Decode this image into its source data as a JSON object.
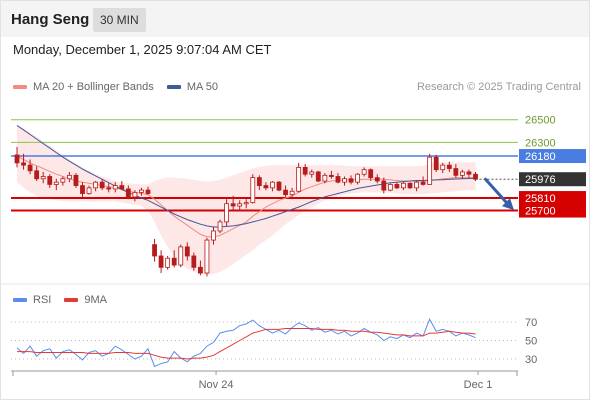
{
  "header": {
    "instrument": "Hang Seng",
    "timeframe": "30 MIN",
    "datetime": "Monday, December 1, 2025 9:07:04 AM CET",
    "copyright": "Research © 2025 Trading Central"
  },
  "colors": {
    "ma20": "#f28b82",
    "bollinger_fill": "#fde3e3",
    "ma50": "#3d5a99",
    "candle": "#b71c1c",
    "resistance_line": "#8bc34a",
    "pivot_line": "#4a7de0",
    "support_line": "#d50000",
    "current_badge": "#333333",
    "rsi": "#5b8def",
    "rsi_ma": "#e53935",
    "arrow": "#3560a8"
  },
  "chart_data": [
    {
      "type": "candlestick",
      "title": "Hang Seng",
      "timeframe": "30 MIN",
      "legend": [
        "MA 20 + Bollinger Bands",
        "MA 50"
      ],
      "legend_placement": "top-left",
      "grid": false,
      "ylim": [
        25150,
        26700
      ],
      "x_tick_labels": [
        {
          "label": "Nov 24",
          "index": 31
        },
        {
          "label": "Dec 1",
          "index": 71
        }
      ],
      "ohlc": [
        [
          26190,
          26260,
          26080,
          26120
        ],
        [
          26120,
          26200,
          26060,
          26100
        ],
        [
          26100,
          26150,
          26020,
          26050
        ],
        [
          26050,
          26090,
          25960,
          25980
        ],
        [
          25980,
          26040,
          25940,
          26000
        ],
        [
          26000,
          26020,
          25900,
          25930
        ],
        [
          25930,
          25980,
          25880,
          25950
        ],
        [
          25950,
          26000,
          25920,
          25980
        ],
        [
          25980,
          26040,
          25950,
          26010
        ],
        [
          26010,
          26030,
          25900,
          25920
        ],
        [
          25920,
          25950,
          25820,
          25850
        ],
        [
          25850,
          25920,
          25840,
          25900
        ],
        [
          25900,
          25960,
          25870,
          25950
        ],
        [
          25950,
          25980,
          25880,
          25900
        ],
        [
          25900,
          25940,
          25860,
          25890
        ],
        [
          25890,
          25950,
          25860,
          25920
        ],
        [
          25920,
          25960,
          25880,
          25890
        ],
        [
          25890,
          25920,
          25800,
          25820
        ],
        [
          25820,
          25880,
          25780,
          25860
        ],
        [
          25860,
          25900,
          25830,
          25880
        ],
        [
          25880,
          25910,
          25840,
          25850
        ],
        [
          25400,
          25450,
          25250,
          25300
        ],
        [
          25300,
          25350,
          25150,
          25200
        ],
        [
          25200,
          25300,
          25180,
          25280
        ],
        [
          25280,
          25350,
          25200,
          25220
        ],
        [
          25220,
          25400,
          25200,
          25380
        ],
        [
          25380,
          25420,
          25260,
          25300
        ],
        [
          25300,
          25330,
          25170,
          25200
        ],
        [
          25200,
          25260,
          25130,
          25150
        ],
        [
          25150,
          25460,
          25120,
          25440
        ],
        [
          25440,
          25560,
          25400,
          25520
        ],
        [
          25520,
          25620,
          25500,
          25600
        ],
        [
          25600,
          25800,
          25560,
          25760
        ],
        [
          25760,
          25830,
          25700,
          25740
        ],
        [
          25740,
          25790,
          25700,
          25760
        ],
        [
          25760,
          25800,
          25720,
          25770
        ],
        [
          25770,
          26020,
          25760,
          25990
        ],
        [
          25990,
          26010,
          25880,
          25920
        ],
        [
          25920,
          25950,
          25880,
          25900
        ],
        [
          25900,
          25960,
          25870,
          25950
        ],
        [
          25950,
          25960,
          25870,
          25880
        ],
        [
          25880,
          25920,
          25820,
          25840
        ],
        [
          25840,
          25900,
          25800,
          25870
        ],
        [
          25870,
          26120,
          25860,
          26080
        ],
        [
          26080,
          26110,
          26000,
          26020
        ],
        [
          26020,
          26060,
          25990,
          26040
        ],
        [
          26040,
          26050,
          25950,
          25960
        ],
        [
          25960,
          26030,
          25940,
          26010
        ],
        [
          26010,
          26050,
          25980,
          26000
        ],
        [
          26000,
          26030,
          25940,
          25950
        ],
        [
          25950,
          26000,
          25920,
          25980
        ],
        [
          25980,
          26010,
          25930,
          25950
        ],
        [
          25950,
          26030,
          25930,
          26020
        ],
        [
          26020,
          26080,
          26000,
          26060
        ],
        [
          26060,
          26070,
          25960,
          25990
        ],
        [
          25990,
          26020,
          25940,
          25960
        ],
        [
          25960,
          25990,
          25850,
          25880
        ],
        [
          25880,
          25940,
          25870,
          25930
        ],
        [
          25930,
          25950,
          25890,
          25900
        ],
        [
          25900,
          25950,
          25880,
          25940
        ],
        [
          25940,
          25950,
          25890,
          25900
        ],
        [
          25900,
          25960,
          25870,
          25950
        ],
        [
          25950,
          26000,
          25920,
          25930
        ],
        [
          25930,
          26200,
          25930,
          26170
        ],
        [
          26170,
          26190,
          26040,
          26060
        ],
        [
          26060,
          26120,
          26030,
          26100
        ],
        [
          26100,
          26130,
          26040,
          26070
        ],
        [
          26070,
          26110,
          25990,
          26010
        ],
        [
          26010,
          26060,
          25980,
          26040
        ],
        [
          26040,
          26060,
          25990,
          26020
        ],
        [
          26020,
          26040,
          25960,
          25976
        ]
      ],
      "ma20": [
        26180,
        26150,
        26120,
        26095,
        26070,
        26045,
        26020,
        26000,
        25980,
        25960,
        25950,
        25940,
        25930,
        25920,
        25910,
        25900,
        25890,
        25870,
        25860,
        25850,
        25840,
        25800,
        25750,
        25700,
        25650,
        25610,
        25570,
        25530,
        25490,
        25470,
        25470,
        25480,
        25510,
        25540,
        25570,
        25600,
        25650,
        25690,
        25730,
        25760,
        25790,
        25810,
        25830,
        25860,
        25890,
        25910,
        25930,
        25950,
        25960,
        25965,
        25970,
        25970,
        25972,
        25975,
        25975,
        25975,
        25975,
        25970,
        25965,
        25960,
        25960,
        25958,
        25958,
        25965,
        25970,
        25980,
        25985,
        25990,
        25990,
        25990,
        25990
      ],
      "bollinger_upper": [
        26450,
        26420,
        26390,
        26350,
        26310,
        26270,
        26230,
        26190,
        26150,
        26110,
        26080,
        26050,
        26020,
        26000,
        25980,
        25960,
        25950,
        25940,
        25935,
        25930,
        25930,
        25960,
        25980,
        25990,
        25990,
        25985,
        25980,
        25970,
        25960,
        25955,
        25960,
        25970,
        25990,
        26010,
        26030,
        26050,
        26070,
        26085,
        26095,
        26100,
        26100,
        26100,
        26100,
        26100,
        26100,
        26100,
        26100,
        26100,
        26100,
        26100,
        26095,
        26090,
        26090,
        26090,
        26090,
        26090,
        26090,
        26090,
        26090,
        26090,
        26090,
        26090,
        26095,
        26110,
        26120,
        26125,
        26125,
        26125,
        26125,
        26125,
        26125
      ],
      "bollinger_lower": [
        25950,
        25900,
        25860,
        25830,
        25810,
        25800,
        25790,
        25785,
        25780,
        25780,
        25780,
        25780,
        25780,
        25780,
        25780,
        25780,
        25770,
        25760,
        25750,
        25740,
        25700,
        25600,
        25480,
        25380,
        25290,
        25230,
        25190,
        25160,
        25140,
        25135,
        25140,
        25160,
        25190,
        25230,
        25270,
        25310,
        25350,
        25400,
        25440,
        25480,
        25530,
        25580,
        25620,
        25660,
        25700,
        25730,
        25760,
        25790,
        25810,
        25830,
        25840,
        25850,
        25855,
        25860,
        25860,
        25860,
        25860,
        25855,
        25850,
        25845,
        25845,
        25845,
        25845,
        25850,
        25855,
        25860,
        25865,
        25870,
        25875,
        25880,
        25880
      ],
      "ma50": [
        26450,
        26410,
        26370,
        26330,
        26290,
        26250,
        26210,
        26170,
        26135,
        26100,
        26065,
        26035,
        26005,
        25975,
        25945,
        25915,
        25885,
        25860,
        25835,
        25810,
        25790,
        25760,
        25730,
        25700,
        25670,
        25645,
        25620,
        25600,
        25580,
        25565,
        25555,
        25555,
        25560,
        25565,
        25575,
        25585,
        25600,
        25615,
        25630,
        25650,
        25670,
        25690,
        25710,
        25730,
        25755,
        25780,
        25800,
        25820,
        25835,
        25850,
        25865,
        25880,
        25895,
        25905,
        25915,
        25925,
        25935,
        25945,
        25950,
        25955,
        25960,
        25965,
        25965,
        25968,
        25970,
        25972,
        25975,
        25978,
        25980,
        25982,
        25985
      ],
      "levels": [
        {
          "label": "26500",
          "value": 26500,
          "kind": "resistance"
        },
        {
          "label": "26300",
          "value": 26300,
          "kind": "resistance"
        },
        {
          "label": "26180",
          "value": 26180,
          "kind": "pivot"
        },
        {
          "label": "25976",
          "value": 25976,
          "kind": "current"
        },
        {
          "label": "25810",
          "value": 25810,
          "kind": "support"
        },
        {
          "label": "25700",
          "value": 25700,
          "kind": "support"
        }
      ]
    },
    {
      "type": "line",
      "title": "",
      "legend": [
        "RSI",
        "9MA"
      ],
      "legend_placement": "top-left",
      "ylim": [
        20,
        80
      ],
      "y_ticks": [
        70,
        50,
        30
      ],
      "x_tick_labels": [
        {
          "label": "Nov 24",
          "index": 31
        },
        {
          "label": "Dec 1",
          "index": 71
        }
      ],
      "series": [
        {
          "name": "RSI",
          "values": [
            42,
            36,
            44,
            33,
            39,
            41,
            31,
            38,
            40,
            35,
            29,
            37,
            39,
            33,
            36,
            44,
            40,
            35,
            30,
            33,
            41,
            22,
            25,
            27,
            38,
            31,
            27,
            33,
            36,
            44,
            48,
            58,
            60,
            61,
            66,
            68,
            72,
            66,
            62,
            58,
            61,
            57,
            64,
            69,
            66,
            61,
            64,
            59,
            61,
            57,
            60,
            55,
            58,
            63,
            59,
            56,
            50,
            54,
            52,
            56,
            53,
            58,
            55,
            73,
            60,
            62,
            60,
            55,
            58,
            56,
            53
          ]
        },
        {
          "name": "9MA",
          "values": [
            38,
            38,
            38,
            37,
            37,
            37,
            37,
            37,
            37,
            37,
            37,
            36,
            36,
            36,
            36,
            37,
            37,
            37,
            36,
            36,
            36,
            34,
            32,
            31,
            31,
            31,
            30,
            31,
            31,
            32,
            34,
            38,
            42,
            46,
            50,
            54,
            58,
            60,
            62,
            62,
            62,
            63,
            63,
            63,
            63,
            63,
            62,
            62,
            62,
            61,
            61,
            60,
            60,
            60,
            59,
            59,
            58,
            57,
            56,
            56,
            55,
            55,
            55,
            58,
            58,
            59,
            60,
            59,
            58,
            58,
            57
          ]
        }
      ]
    }
  ]
}
